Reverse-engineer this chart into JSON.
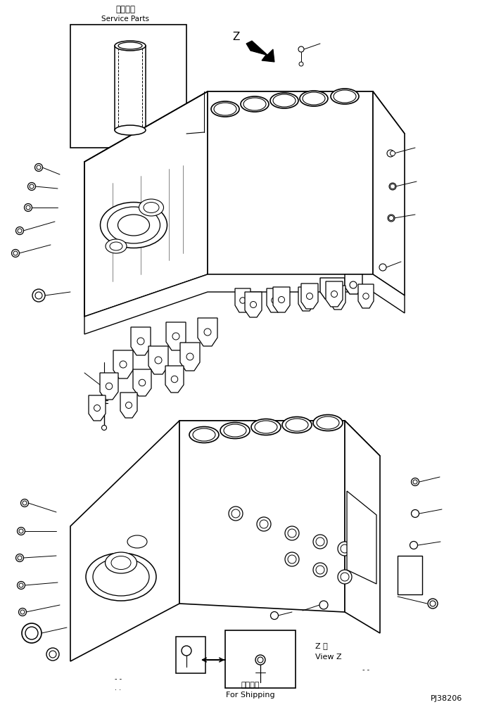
{
  "bg_color": "#ffffff",
  "line_color": "#000000",
  "title_jp": "補給専用",
  "title_en": "Service Parts",
  "bottom_label_jp": "運携部品",
  "bottom_label_en": "For Shipping",
  "view_label_jp": "Z 視",
  "view_label_en": "View Z",
  "part_number": "PJ38206",
  "fig_width": 6.85,
  "fig_height": 10.05,
  "dpi": 100
}
